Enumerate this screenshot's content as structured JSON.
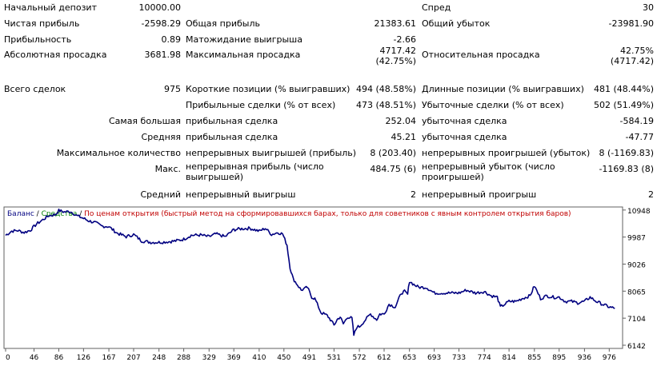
{
  "rows": [
    {
      "cells": [
        {
          "id": "c1",
          "text": "Начальный депозит"
        },
        {
          "id": "c2",
          "text": "10000.00"
        },
        {
          "id": "c5",
          "text": "Спред"
        },
        {
          "id": "c6",
          "text": "30"
        }
      ]
    },
    {
      "cells": [
        {
          "id": "c1",
          "text": "Чистая прибыль"
        },
        {
          "id": "c2",
          "text": "-2598.29"
        },
        {
          "id": "c3",
          "text": "Общая прибыль"
        },
        {
          "id": "c4",
          "text": "21383.61"
        },
        {
          "id": "c5",
          "text": "Общий убыток"
        },
        {
          "id": "c6",
          "text": "-23981.90"
        }
      ]
    },
    {
      "cells": [
        {
          "id": "c1",
          "text": "Прибыльность"
        },
        {
          "id": "c2",
          "text": "0.89"
        },
        {
          "id": "c3",
          "text": "Матожидание выигрыша"
        },
        {
          "id": "c4",
          "text": "-2.66"
        }
      ]
    },
    {
      "cells": [
        {
          "id": "c1",
          "text": "Абсолютная просадка"
        },
        {
          "id": "c2",
          "text": "3681.98"
        },
        {
          "id": "c3",
          "text": "Максимальная просадка"
        },
        {
          "id": "c4",
          "lines": [
            "4717.42",
            "(42.75%)"
          ]
        },
        {
          "id": "c5",
          "text": "Относительная просадка"
        },
        {
          "id": "c6",
          "lines": [
            "42.75%",
            "(4717.42)"
          ]
        }
      ]
    },
    {
      "cells": [
        {
          "id": "c1",
          "text": "Всего сделок"
        },
        {
          "id": "c2",
          "text": "975"
        },
        {
          "id": "c3",
          "text": "Короткие позиции (% выигравших)"
        },
        {
          "id": "c4",
          "text": "494 (48.58%)"
        },
        {
          "id": "c5",
          "text": "Длинные позиции (% выигравших)"
        },
        {
          "id": "c6",
          "text": "481 (48.44%)"
        }
      ]
    },
    {
      "cells": [
        {
          "id": "c3",
          "text": "Прибыльные сделки (% от всех)"
        },
        {
          "id": "c4",
          "text": "473 (48.51%)"
        },
        {
          "id": "c5",
          "text": "Убыточные сделки (% от всех)"
        },
        {
          "id": "c6",
          "text": "502 (51.49%)"
        }
      ]
    },
    {
      "cells": [
        {
          "id": "c2",
          "text": "Самая большая"
        },
        {
          "id": "c3",
          "text": "прибыльная сделка"
        },
        {
          "id": "c4",
          "text": "252.04"
        },
        {
          "id": "c5",
          "text": "убыточная сделка"
        },
        {
          "id": "c6",
          "text": "-584.19"
        }
      ]
    },
    {
      "cells": [
        {
          "id": "c2",
          "text": "Средняя"
        },
        {
          "id": "c3",
          "text": "прибыльная сделка"
        },
        {
          "id": "c4",
          "text": "45.21"
        },
        {
          "id": "c5",
          "text": "убыточная сделка"
        },
        {
          "id": "c6",
          "text": "-47.77"
        }
      ]
    },
    {
      "cells": [
        {
          "id": "c2",
          "text": "Максимальное количество"
        },
        {
          "id": "c3",
          "text": "непрерывных выигрышей (прибыль)"
        },
        {
          "id": "c4",
          "text": "8 (203.40)"
        },
        {
          "id": "c5",
          "text": "непрерывных проигрышей (убыток)"
        },
        {
          "id": "c6",
          "text": "8 (-1169.83)"
        }
      ]
    },
    {
      "cells": [
        {
          "id": "c2",
          "text": "Макс."
        },
        {
          "id": "c3",
          "lines": [
            "непрерывная прибыль (число",
            "выигрышей)"
          ]
        },
        {
          "id": "c4",
          "text": "484.75 (6)"
        },
        {
          "id": "c5",
          "lines": [
            "непрерывный убыток (число",
            "проигрышей)"
          ]
        },
        {
          "id": "c6",
          "text": "-1169.83 (8)"
        }
      ]
    },
    {
      "cells": [
        {
          "id": "c2",
          "text": "Средний"
        },
        {
          "id": "c3",
          "text": "непрерывный выигрыш"
        },
        {
          "id": "c4",
          "text": "2"
        },
        {
          "id": "c5",
          "text": "непрерывный проигрыш"
        },
        {
          "id": "c6",
          "text": "2"
        }
      ]
    }
  ],
  "chart_data": {
    "type": "line",
    "legend": {
      "balance": "Баланс",
      "sep1": " / ",
      "equity": "Средства",
      "sep2": " / ",
      "mode": "По ценам открытия (быстрый метод на сформировавшихся барах, только для советников с явным контролем открытия баров)"
    },
    "colors": {
      "balance": "#000080",
      "legend_balance": "#000080",
      "legend_equity": "#008000",
      "legend_mode": "#c00000",
      "frame": "#606060"
    },
    "ylim": [
      6142,
      11000
    ],
    "yticks": [
      10948,
      9987,
      9026,
      8065,
      7104,
      6142
    ],
    "xlim": [
      0,
      995
    ],
    "xticks": [
      0,
      46,
      86,
      126,
      167,
      207,
      248,
      288,
      329,
      369,
      410,
      450,
      491,
      531,
      572,
      612,
      653,
      693,
      733,
      774,
      814,
      855,
      895,
      936,
      976
    ],
    "series": [
      {
        "x": [
          0,
          10,
          20,
          30,
          40,
          50,
          60,
          70,
          80,
          86,
          95,
          105,
          115,
          126,
          135,
          145,
          155,
          167,
          180,
          195,
          207,
          220,
          235,
          248,
          262,
          275,
          288,
          300,
          315,
          329,
          340,
          355,
          369,
          380,
          395,
          410,
          420,
          430,
          440,
          448,
          455,
          460,
          465,
          470,
          478,
          488,
          495,
          500,
          510,
          520,
          527,
          531,
          536,
          541,
          546,
          553,
          560,
          563,
          568,
          572,
          580,
          590,
          600,
          605,
          612,
          620,
          630,
          640,
          645,
          650,
          653,
          660,
          668,
          680,
          693,
          705,
          720,
          733,
          745,
          760,
          774,
          785,
          795,
          800,
          814,
          825,
          835,
          848,
          855,
          865,
          875,
          885,
          895,
          905,
          915,
          925,
          936,
          945,
          955,
          965,
          976,
          985
        ],
        "values": [
          10050,
          10200,
          10220,
          10150,
          10230,
          10450,
          10600,
          10750,
          10780,
          10930,
          10880,
          10900,
          10750,
          10650,
          10560,
          10500,
          10380,
          10360,
          10130,
          10000,
          10080,
          9850,
          9800,
          9800,
          9820,
          9850,
          9910,
          10050,
          10060,
          10000,
          10100,
          10000,
          10250,
          10280,
          10300,
          10200,
          10300,
          10080,
          10150,
          10100,
          9700,
          8900,
          8500,
          8350,
          8100,
          8200,
          7850,
          7800,
          7300,
          7200,
          7000,
          6850,
          7050,
          7150,
          6900,
          7150,
          7100,
          6500,
          6800,
          6800,
          7000,
          7250,
          7050,
          7250,
          7250,
          7600,
          7500,
          8000,
          8050,
          7950,
          8420,
          8300,
          8200,
          8200,
          8000,
          8000,
          8000,
          8000,
          8100,
          8000,
          8050,
          7900,
          7850,
          7500,
          7700,
          7700,
          7800,
          7900,
          8250,
          7800,
          7900,
          7850,
          7850,
          7700,
          7700,
          7650,
          7700,
          7850,
          7700,
          7600,
          7500,
          7450
        ]
      }
    ]
  }
}
